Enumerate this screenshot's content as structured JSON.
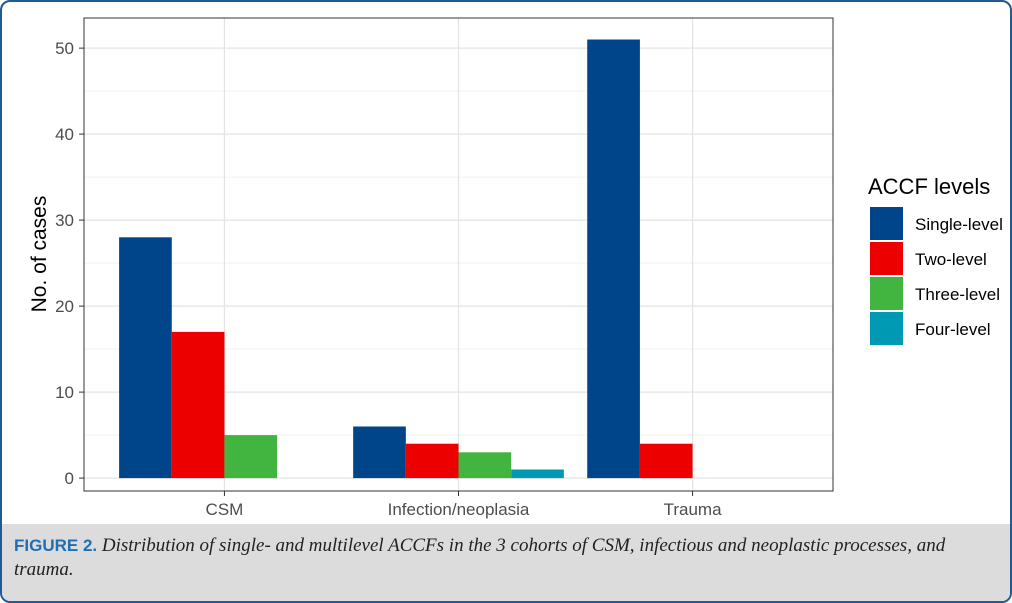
{
  "chart_data": {
    "type": "bar",
    "categories": [
      "CSM",
      "Infection/neoplasia",
      "Trauma"
    ],
    "series": [
      {
        "name": "Single-level",
        "color": "#004589",
        "values": [
          28,
          6,
          51
        ]
      },
      {
        "name": "Two-level",
        "color": "#ed0000",
        "values": [
          17,
          4,
          4
        ]
      },
      {
        "name": "Three-level",
        "color": "#42b540",
        "values": [
          5,
          3,
          0
        ]
      },
      {
        "name": "Four-level",
        "color": "#0099b4",
        "values": [
          0,
          1,
          0
        ]
      }
    ],
    "xlabel": "",
    "ylabel": "No. of cases",
    "ylim": [
      -1.5,
      53.5
    ],
    "yticks": [
      0,
      10,
      20,
      30,
      40,
      50
    ],
    "legend_title": "ACCF levels",
    "legend_position": "right",
    "grid": true
  },
  "caption": {
    "label": "FIGURE 2.",
    "text": "Distribution of single- and multilevel ACCFs in the 3 cohorts of CSM, infectious and neoplastic processes, and trauma."
  }
}
